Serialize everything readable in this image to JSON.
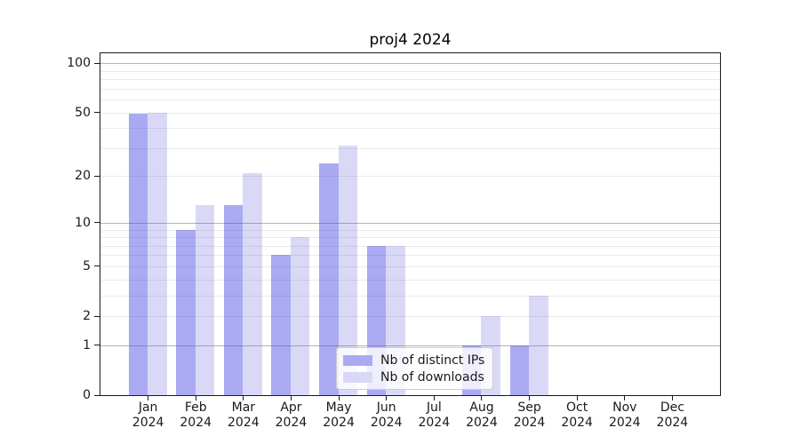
{
  "chart_data": {
    "type": "bar",
    "title": "proj4 2024",
    "categories": [
      "Jan",
      "Feb",
      "Mar",
      "Apr",
      "May",
      "Jun",
      "Jul",
      "Aug",
      "Sep",
      "Oct",
      "Nov",
      "Dec"
    ],
    "x_year_label": "2024",
    "series": [
      {
        "name": "Nb of distinct IPs",
        "color": "#aaaaf2",
        "values": [
          49,
          9,
          13,
          6,
          24,
          7,
          0,
          1,
          1,
          0,
          0,
          0
        ]
      },
      {
        "name": "Nb of downloads",
        "color": "#d9d9f7",
        "values": [
          50,
          13,
          21,
          8,
          31,
          7,
          0,
          2,
          3,
          0,
          0,
          0
        ]
      }
    ],
    "xlabel": "",
    "ylabel": "",
    "y_axis": {
      "scale": "log(1+x)",
      "tick_values": [
        0,
        1,
        2,
        5,
        10,
        20,
        50,
        100
      ],
      "major_gridlines": [
        1,
        10,
        100
      ],
      "minor_gridlines": [
        2,
        3,
        4,
        5,
        6,
        7,
        8,
        9,
        20,
        30,
        40,
        50,
        60,
        70,
        80,
        90
      ],
      "ylim": [
        0,
        115
      ]
    },
    "grid": true,
    "legend": {
      "position": "lower center",
      "entries": [
        "Nb of distinct IPs",
        "Nb of downloads"
      ]
    }
  }
}
